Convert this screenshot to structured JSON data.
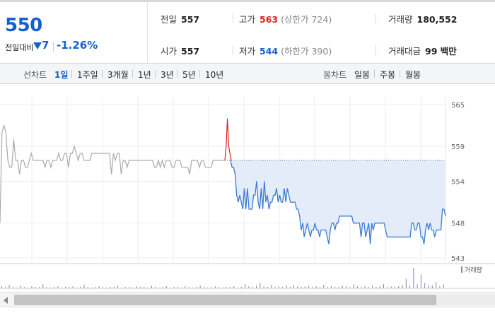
{
  "quote": {
    "current_price": "550",
    "change_label": "전일대비",
    "change_value": "7",
    "change_direction": "down",
    "change_percent": "-1.26%",
    "prev_close_label": "전일",
    "prev_close": "557",
    "high_label": "고가",
    "high": "563",
    "upper_limit": "(상한가 724)",
    "volume_label": "거래량",
    "volume": "180,552",
    "open_label": "시가",
    "open": "557",
    "low_label": "저가",
    "low": "544",
    "lower_limit": "(하한가 390)",
    "amount_label": "거래대금",
    "amount": "99 백만"
  },
  "toolbar": {
    "line_chart_label": "선차트",
    "line_periods": [
      "1일",
      "1주일",
      "3개월",
      "1년",
      "3년",
      "5년",
      "10년"
    ],
    "active_period": "1일",
    "candle_chart_label": "봉차트",
    "candle_periods": [
      "일봉",
      "주봉",
      "월봉"
    ]
  },
  "colors": {
    "price_down": "#1560d0",
    "price_up": "#e02020",
    "prev_day_line": "#aaaaaa",
    "today_line": "#3a7bd5",
    "area_fill": "#e3ecf8",
    "volume_bar": "#8a7fb0"
  },
  "chart_data": {
    "type": "line",
    "y_ticks": [
      "565",
      "559",
      "554",
      "548",
      "543"
    ],
    "ylim": [
      543,
      565
    ],
    "reference_price": 557,
    "volume_legend": "거래량",
    "grid": true,
    "series": [
      {
        "role": "previous-day",
        "values": [
          548,
          561,
          562,
          561,
          557,
          556,
          556,
          560,
          557,
          557,
          555,
          557,
          557,
          556,
          556,
          557,
          558,
          557,
          557,
          557,
          557,
          557,
          557,
          556,
          557,
          557,
          556,
          557,
          557,
          557,
          558,
          557,
          557,
          558,
          558,
          556,
          558,
          558,
          559,
          558,
          557,
          558,
          558,
          557,
          557,
          557,
          557,
          558,
          558,
          558,
          558,
          558,
          558,
          558,
          558,
          558,
          558,
          555,
          558,
          557,
          558,
          558,
          555,
          557,
          557,
          556,
          557,
          557,
          557,
          557,
          557,
          557,
          557,
          557,
          557,
          557,
          557,
          557,
          557,
          556,
          556,
          557,
          556,
          557,
          556,
          557,
          557,
          557,
          556,
          556,
          557,
          557,
          557,
          556,
          556,
          556,
          556,
          555,
          557,
          557,
          557,
          557,
          556,
          557,
          557,
          556,
          556,
          556,
          556,
          557,
          557,
          557,
          557,
          557,
          557,
          557
        ]
      },
      {
        "role": "today-high-spike",
        "values": [
          557,
          559,
          563,
          559,
          558,
          557
        ]
      },
      {
        "role": "today",
        "values": [
          557,
          556,
          556,
          555,
          552,
          551,
          552,
          551,
          550,
          553,
          550,
          553,
          550,
          550,
          550,
          552,
          552,
          554,
          551,
          550,
          553,
          550,
          554,
          551,
          552,
          550,
          551,
          551,
          552,
          552,
          553,
          551,
          552,
          551,
          551,
          553,
          551,
          553,
          552,
          551,
          551,
          551,
          551,
          550,
          550,
          549,
          547,
          548,
          546,
          547,
          548,
          547,
          546,
          547,
          547,
          548,
          547,
          547,
          546,
          547,
          547,
          547,
          547,
          546,
          545,
          547,
          548,
          548,
          547,
          548,
          548,
          549,
          549,
          549,
          549,
          549,
          549,
          549,
          549,
          549,
          548,
          548,
          548,
          548,
          548,
          546,
          548,
          548,
          546,
          547,
          548,
          545,
          548,
          547,
          548,
          548,
          548,
          548,
          548,
          548,
          548,
          547,
          546,
          546,
          546,
          546,
          546,
          546,
          546,
          546,
          546,
          546,
          546,
          546,
          546,
          546,
          546,
          546,
          548,
          548,
          547,
          547,
          548,
          548,
          546,
          546,
          545,
          547,
          548,
          547,
          548,
          547,
          547,
          546,
          547,
          547,
          547,
          547,
          550,
          550,
          549
        ]
      }
    ],
    "volume": [
      3,
      2,
      5,
      2,
      1,
      4,
      2,
      1,
      3,
      2,
      2,
      6,
      2,
      1,
      2,
      3,
      1,
      2,
      2,
      3,
      1,
      2,
      5,
      2,
      1,
      2,
      3,
      2,
      1,
      2,
      2,
      4,
      1,
      2,
      2,
      1,
      3,
      2,
      2,
      1,
      4,
      2,
      1,
      2,
      3,
      1,
      2,
      2,
      1,
      3,
      2,
      1,
      2,
      4,
      2,
      1,
      2,
      3,
      2,
      1,
      2,
      2,
      3,
      1,
      2,
      6,
      3,
      2,
      4,
      8,
      3,
      2,
      5,
      2,
      3,
      2,
      4,
      2,
      5,
      3,
      2,
      3,
      4,
      2,
      3,
      2,
      5,
      2,
      3,
      2,
      2,
      4,
      3,
      2,
      6,
      3,
      2,
      3,
      2,
      4,
      2,
      3,
      6,
      2,
      3,
      2,
      3,
      5,
      14,
      4,
      30,
      6,
      20,
      8,
      5,
      4,
      9,
      3,
      6
    ]
  },
  "scrollbar": {
    "left_arrow": "chevron-left-icon",
    "thumb_fraction": 0.86
  }
}
